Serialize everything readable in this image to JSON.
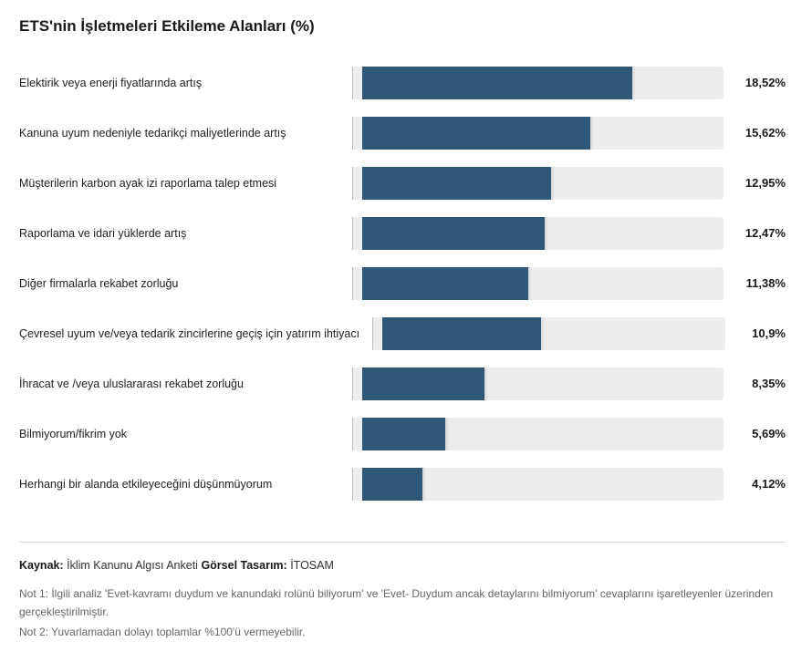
{
  "chart_data": {
    "type": "bar",
    "orientation": "horizontal",
    "title": "ETS'nin İşletmeleri Etkileme Alanları (%)",
    "categories": [
      "Elektirik veya enerji fiyatlarında artış",
      "Kanuna uyum nedeniyle tedarikçi maliyetlerinde artış",
      "Müşterilerin karbon ayak izi raporlama talep etmesi",
      "Raporlama ve idari yüklerde artış",
      "Diğer firmalarla rekabet zorluğu",
      "Çevresel uyum ve/veya tedarik zincirlerine geçiş için yatırım ihtiyacı",
      "İhracat ve /veya uluslararası rekabet zorluğu",
      "Bilmiyorum/fikrim yok",
      "Herhangi bir alanda etkileyeceğini düşünmüyorum"
    ],
    "values": [
      18.52,
      15.62,
      12.95,
      12.47,
      11.38,
      10.9,
      8.35,
      5.69,
      4.12
    ],
    "value_labels": [
      "18,52%",
      "15,62%",
      "12,95%",
      "12,47%",
      "11,38%",
      "10,9%",
      "8,35%",
      "5,69%",
      "4,12%"
    ],
    "xlim": [
      0,
      25
    ],
    "bar_color": "#305776",
    "track_color": "#ededed",
    "grid": false,
    "legend": "none"
  },
  "footer": {
    "source_label": "Kaynak:",
    "source_value": "İklim Kanunu Algısı Anketi",
    "design_label": "Görsel Tasarım:",
    "design_value": "İTOSAM",
    "note1": "Not 1: İlgili analiz 'Evet-kavramı duydum ve kanundaki rolünü biliyorum' ve 'Evet- Duydum ancak detaylarını bilmiyorum' cevaplarını işaretleyenler üzerinden gerçekleştirilmiştir.",
    "note2": "Not 2: Yuvarlamadan dolayı toplamlar %100'ü vermeyebilir."
  }
}
